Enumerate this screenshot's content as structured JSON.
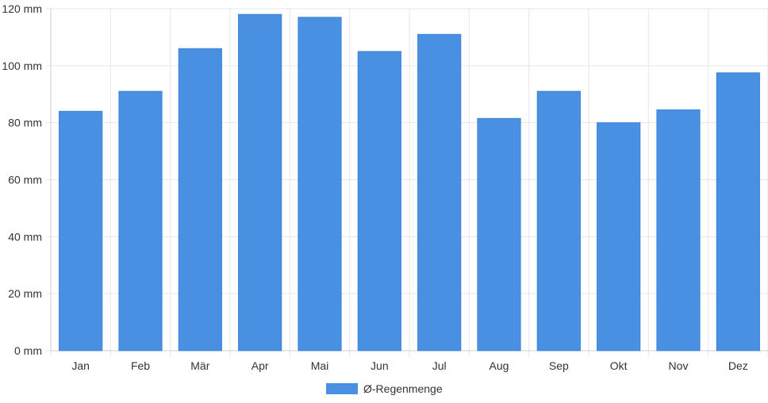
{
  "chart_data": {
    "type": "bar",
    "categories": [
      "Jan",
      "Feb",
      "Mär",
      "Apr",
      "Mai",
      "Jun",
      "Jul",
      "Aug",
      "Sep",
      "Okt",
      "Nov",
      "Dez"
    ],
    "series": [
      {
        "name": "Ø-Regenmenge",
        "values": [
          84,
          91,
          106,
          118,
          117,
          105,
          111,
          81.5,
          91,
          80,
          84.5,
          97.5
        ],
        "color": "#4a90e2"
      }
    ],
    "y_ticks": [
      "0 mm",
      "20 mm",
      "40 mm",
      "60 mm",
      "80 mm",
      "100 mm",
      "120 mm"
    ],
    "ylim": [
      0,
      120
    ],
    "grid": true,
    "legend_position": "bottom-center"
  }
}
